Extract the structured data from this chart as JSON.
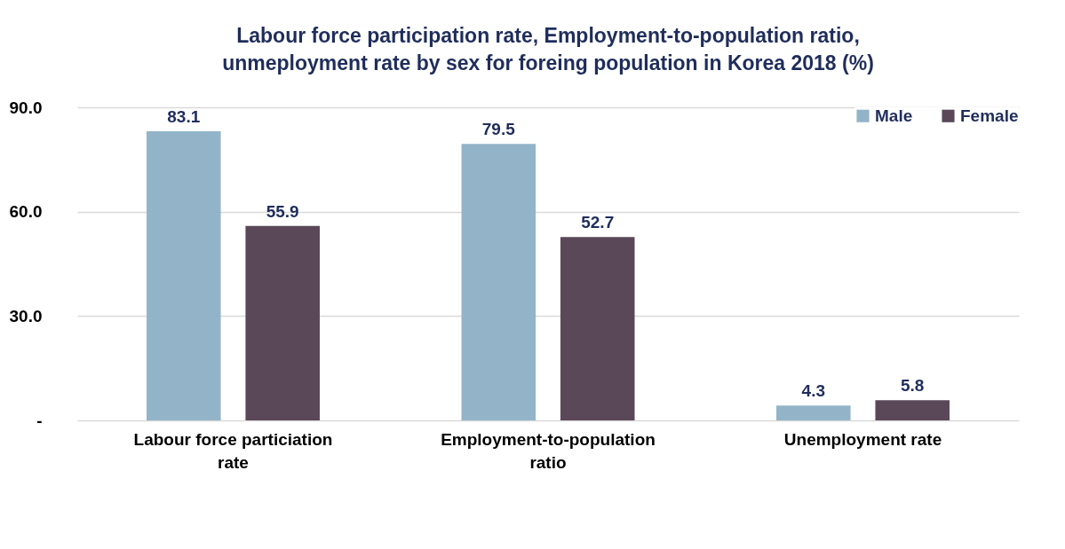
{
  "chart_data": {
    "type": "bar",
    "title": "Labour force participation rate, Employment-to-population ratio, unmeployment rate by sex for foreing population in Korea 2018 (%)",
    "categories": [
      "Labour force particiation rate",
      "Employment-to-population ratio",
      "Unemployment rate"
    ],
    "series": [
      {
        "name": "Male",
        "color": "#93b4c8",
        "values": [
          83.1,
          79.5,
          4.3
        ]
      },
      {
        "name": "Female",
        "color": "#5a4858",
        "values": [
          55.9,
          52.7,
          5.8
        ]
      }
    ],
    "ylim": [
      0,
      90
    ],
    "yticks": [
      {
        "value": 0,
        "label": "-"
      },
      {
        "value": 30,
        "label": "30.0"
      },
      {
        "value": 60,
        "label": "60.0"
      },
      {
        "value": 90,
        "label": "90.0"
      }
    ],
    "grid": "y",
    "legend": "top right",
    "data_labels": true
  }
}
